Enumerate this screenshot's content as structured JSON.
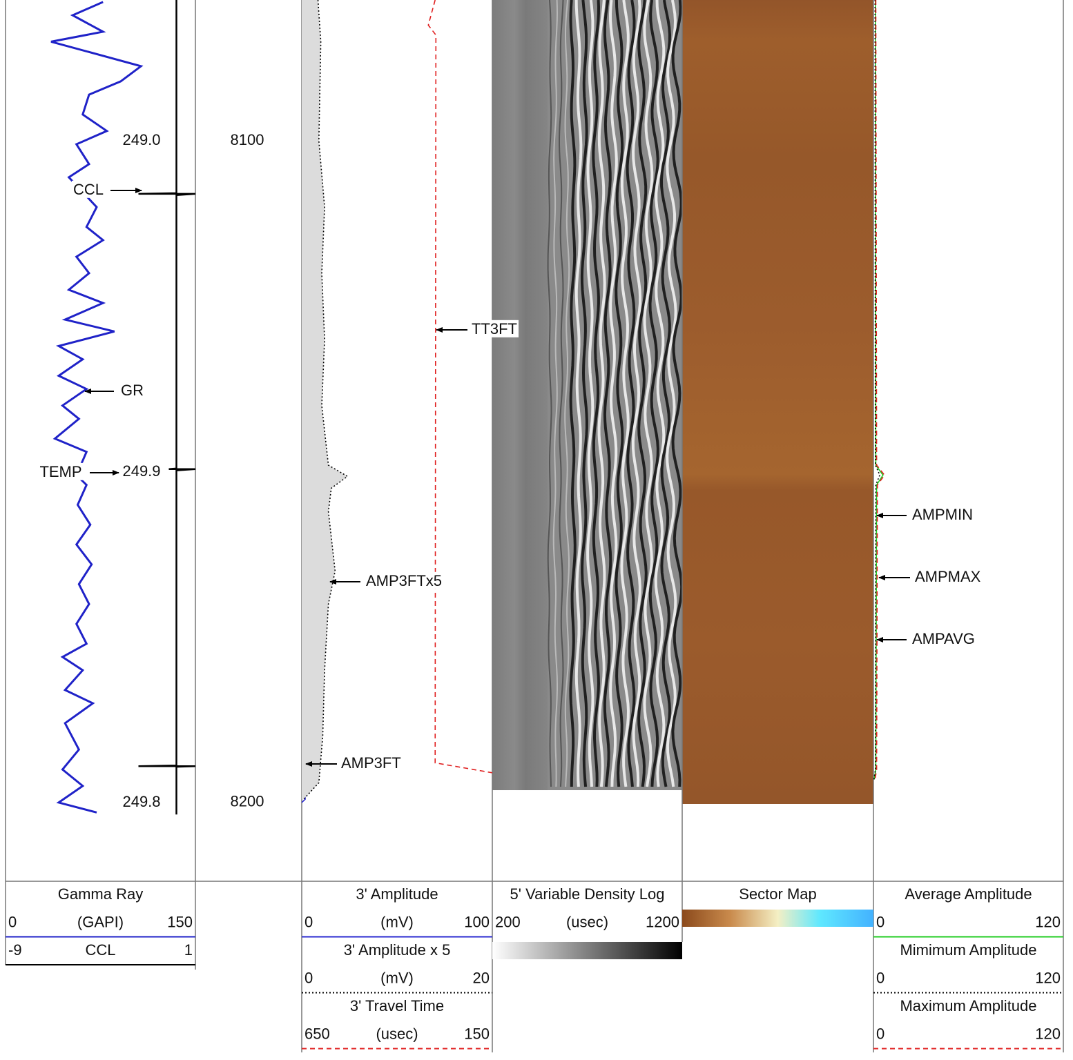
{
  "depth_axis": {
    "lim": [
      8078.7,
      8211.9
    ],
    "labels": [
      8100,
      8200
    ]
  },
  "curves": {
    "gr": {
      "title": "Gamma Ray",
      "scale": [
        0,
        150
      ],
      "unit": "(GAPI)",
      "color": "#1f22c8",
      "line_style": "solid",
      "depth": [
        8079,
        8081,
        8083.5,
        8085,
        8088.7,
        8091,
        8093,
        8096,
        8098.5,
        8100.5,
        8103.5,
        8105.5,
        8110,
        8113,
        8115,
        8117.5,
        8120,
        8122.5,
        8124.5,
        8127,
        8128.8,
        8131,
        8133,
        8135.5,
        8137.5,
        8140,
        8142,
        8145,
        8147,
        8150.5,
        8152,
        8155,
        8158,
        8161,
        8164,
        8167,
        8170,
        8173,
        8176,
        8178,
        8180,
        8183,
        8185,
        8188,
        8192,
        8195,
        8197.5,
        8200,
        8201.5
      ],
      "values": [
        77,
        53,
        77,
        36,
        107,
        91,
        66,
        61,
        80,
        56,
        66,
        50,
        72,
        64,
        77,
        56,
        66,
        50,
        77,
        47,
        86,
        42,
        61,
        42,
        64,
        45,
        58,
        39,
        64,
        56,
        64,
        57,
        67,
        56,
        68,
        58,
        66,
        56,
        64,
        45,
        61,
        47,
        69,
        47,
        58,
        45,
        61,
        42,
        72
      ]
    },
    "ccl": {
      "title": "CCL",
      "scale": [
        -9,
        1
      ],
      "color": "#000000",
      "line_style": "solid",
      "depth": [
        8078.7,
        8107.9,
        8108,
        8108,
        8108.2,
        8149.5,
        8149.6,
        8149.6,
        8149.8,
        8194.4,
        8194.5,
        8194.5,
        8194.6,
        8201.8
      ],
      "values": [
        0,
        0,
        -2,
        1,
        0,
        0,
        -0.4,
        1,
        0,
        0,
        -2,
        1,
        0,
        0
      ]
    },
    "amp3ft": {
      "title": "3' Amplitude",
      "scale": [
        0,
        100
      ],
      "unit": "(mV)",
      "color": "#2a2ad0",
      "line_style": "solid",
      "depth": [
        8078.7,
        8149,
        8150.7,
        8153,
        8199.5,
        8200
      ],
      "values": [
        0.7,
        1.8,
        4.5,
        1.8,
        1.8,
        0
      ]
    },
    "amp3ft_x5": {
      "title": "3' Amplitude x 5",
      "scale": [
        0,
        20
      ],
      "unit": "(mV)",
      "color": "#000000",
      "line_style": "dotted",
      "depth": [
        8078.7,
        8085,
        8100,
        8110,
        8120,
        8130,
        8140,
        8149,
        8150.7,
        8152.5,
        8156,
        8165,
        8170,
        8180,
        8190,
        8197,
        8199.5
      ],
      "values": [
        1.7,
        2,
        1.8,
        2.4,
        2.1,
        2.4,
        2.1,
        2.8,
        4.8,
        3.1,
        2.8,
        3.5,
        2.8,
        2.4,
        2.2,
        1.8,
        0.2
      ]
    },
    "tt3ft": {
      "title": "3' Travel Time",
      "scale": [
        650,
        150
      ],
      "unit": "(usec)",
      "color": "#e02020",
      "line_style": "dashed",
      "depth": [
        8078.7,
        8082.5,
        8084,
        8194,
        8195.5
      ],
      "values": [
        300,
        318,
        298,
        300,
        150
      ]
    },
    "vdl": {
      "title": "5' Variable Density Log",
      "scale": [
        200,
        1200
      ],
      "unit": "(usec)"
    },
    "sector_map": {
      "title": "Sector Map"
    },
    "ampavg": {
      "title": "Average Amplitude",
      "scale": [
        0,
        120
      ],
      "color": "#22cc22",
      "line_style": "solid",
      "unit_less": true,
      "depth": [
        8078.7,
        8149,
        8150.5,
        8152,
        8195,
        8196.5
      ],
      "values": [
        1.2,
        1.5,
        6,
        2,
        1.5,
        0.5
      ]
    },
    "ampmin": {
      "title": "Mimimum Amplitude",
      "scale": [
        0,
        120
      ],
      "color": "#000000",
      "line_style": "dotted",
      "unit_less": true,
      "depth": [
        8078.7,
        8149,
        8150.5,
        8152,
        8195,
        8196.5
      ],
      "values": [
        1,
        1.2,
        4,
        1.5,
        1.2,
        0.3
      ]
    },
    "ampmax": {
      "title": "Maximum Amplitude",
      "scale": [
        0,
        120
      ],
      "color": "#e02020",
      "line_style": "dashed",
      "unit_less": true,
      "depth": [
        8078.7,
        8149,
        8150.5,
        8152,
        8195,
        8196.5
      ],
      "values": [
        1.5,
        2,
        7,
        2.5,
        2,
        1
      ]
    }
  },
  "annotations": [
    "CCL",
    "GR",
    "TEMP",
    "TT3FT",
    "AMP3FTx5",
    "AMP3FT",
    "AMPMIN",
    "AMPMAX",
    "AMPAVG"
  ],
  "temp_labels": [
    "249.0",
    "249.9",
    "249.8"
  ]
}
